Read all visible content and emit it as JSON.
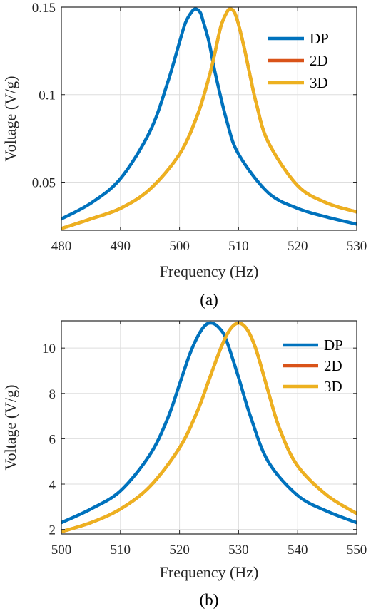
{
  "chart_data": [
    {
      "type": "line",
      "panel_label": "(a)",
      "xlabel": "Frequency (Hz)",
      "ylabel": "Voltage (V/g)",
      "xlim": [
        480,
        530
      ],
      "ylim": [
        0.0225,
        0.15
      ],
      "xticks": [
        480,
        490,
        500,
        510,
        520,
        530
      ],
      "yticks": [
        0.05,
        0.1,
        0.15
      ],
      "ytick_labels": [
        "0.05",
        "0.1",
        "0.15"
      ],
      "grid": true,
      "legend_position": "top-right",
      "series": [
        {
          "name": "DP",
          "color": "#0072BD",
          "x": [
            480,
            485,
            490,
            495,
            498,
            500,
            501,
            502,
            502.7,
            503.5,
            504,
            505,
            506,
            508,
            510,
            515,
            520,
            525,
            530
          ],
          "y": [
            0.029,
            0.038,
            0.052,
            0.079,
            0.107,
            0.13,
            0.141,
            0.147,
            0.149,
            0.147,
            0.142,
            0.13,
            0.113,
            0.085,
            0.066,
            0.044,
            0.035,
            0.03,
            0.026
          ]
        },
        {
          "name": "2D",
          "color": "#D95319",
          "x": [
            480,
            485,
            490,
            495,
            500,
            503,
            505,
            506,
            507,
            508,
            508.6,
            509.3,
            510,
            511,
            512,
            513,
            515,
            520,
            525,
            530
          ],
          "y": [
            0.0235,
            0.029,
            0.035,
            0.046,
            0.066,
            0.088,
            0.11,
            0.124,
            0.139,
            0.147,
            0.149,
            0.147,
            0.14,
            0.126,
            0.11,
            0.095,
            0.073,
            0.048,
            0.038,
            0.033
          ]
        },
        {
          "name": "3D",
          "color": "#EDB120",
          "x": [
            480,
            485,
            490,
            495,
            500,
            503,
            505,
            506,
            507,
            508,
            508.6,
            509.3,
            510,
            511,
            512,
            513,
            515,
            520,
            525,
            530
          ],
          "y": [
            0.0235,
            0.029,
            0.035,
            0.046,
            0.066,
            0.088,
            0.11,
            0.124,
            0.139,
            0.147,
            0.149,
            0.147,
            0.14,
            0.126,
            0.11,
            0.095,
            0.073,
            0.048,
            0.038,
            0.033
          ]
        }
      ]
    },
    {
      "type": "line",
      "panel_label": "(b)",
      "xlabel": "Frequency (Hz)",
      "ylabel": "Voltage (V/g)",
      "xlim": [
        500,
        550
      ],
      "ylim": [
        1.8,
        11.2
      ],
      "xticks": [
        500,
        510,
        520,
        530,
        540,
        550
      ],
      "yticks": [
        2,
        4,
        6,
        8,
        10
      ],
      "ytick_labels": [
        "2",
        "4",
        "6",
        "8",
        "10"
      ],
      "grid": true,
      "legend_position": "top-right",
      "series": [
        {
          "name": "DP",
          "color": "#0072BD",
          "x": [
            500,
            505,
            510,
            515,
            518,
            520,
            522,
            524,
            525.5,
            527,
            528,
            530,
            532,
            535,
            540,
            545,
            550
          ],
          "y": [
            2.3,
            2.9,
            3.7,
            5.3,
            6.9,
            8.4,
            9.9,
            10.9,
            11.1,
            10.8,
            10.3,
            8.7,
            7.0,
            5.0,
            3.5,
            2.8,
            2.3
          ]
        },
        {
          "name": "2D",
          "color": "#D95319",
          "x": [
            500,
            505,
            510,
            515,
            520,
            523,
            525,
            527,
            528.5,
            530,
            531.5,
            533,
            535,
            537,
            540,
            545,
            550
          ],
          "y": [
            1.9,
            2.3,
            2.9,
            3.9,
            5.6,
            7.2,
            8.6,
            10.0,
            10.8,
            11.1,
            10.8,
            9.9,
            8.1,
            6.4,
            4.8,
            3.5,
            2.7
          ]
        },
        {
          "name": "3D",
          "color": "#EDB120",
          "x": [
            500,
            505,
            510,
            515,
            520,
            523,
            525,
            527,
            528.5,
            530,
            531.5,
            533,
            535,
            537,
            540,
            545,
            550
          ],
          "y": [
            1.9,
            2.3,
            2.9,
            3.9,
            5.6,
            7.2,
            8.6,
            10.0,
            10.8,
            11.1,
            10.8,
            9.9,
            8.1,
            6.4,
            4.8,
            3.5,
            2.7
          ]
        }
      ]
    }
  ]
}
